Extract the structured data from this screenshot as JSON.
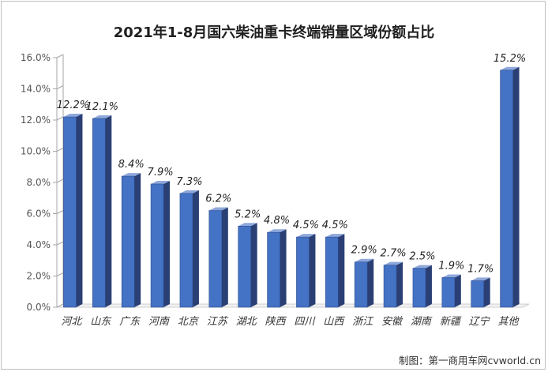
{
  "chart_data": {
    "type": "bar",
    "title": "2021年1-8月国六柴油重卡终端销量区域份额占比",
    "categories": [
      "河北",
      "山东",
      "广东",
      "河南",
      "北京",
      "江苏",
      "湖北",
      "陕西",
      "四川",
      "山西",
      "浙江",
      "安徽",
      "湖南",
      "新疆",
      "辽宁",
      "其他"
    ],
    "values": [
      12.2,
      12.1,
      8.4,
      7.9,
      7.3,
      6.2,
      5.2,
      4.8,
      4.5,
      4.5,
      2.9,
      2.7,
      2.5,
      1.9,
      1.7,
      15.2
    ],
    "data_labels": [
      "12.2%",
      "12.1%",
      "8.4%",
      "7.9%",
      "7.3%",
      "6.2%",
      "5.2%",
      "4.8%",
      "4.5%",
      "4.5%",
      "2.9%",
      "2.7%",
      "2.5%",
      "1.9%",
      "1.7%",
      "15.2%"
    ],
    "y_ticks": [
      "0.0%",
      "2.0%",
      "4.0%",
      "6.0%",
      "8.0%",
      "10.0%",
      "12.0%",
      "14.0%",
      "16.0%"
    ],
    "ylim": [
      0,
      16
    ],
    "grid": false,
    "legend": "none",
    "xlabel": "",
    "ylabel": "",
    "colors": {
      "bar_front": "#4472c4",
      "bar_side": "#2a3f74",
      "bar_top": "#8fa8dc",
      "axis": "#a6a6a6",
      "floor": "#cfcfcf"
    }
  },
  "credit": "制图：第一商用车网cvworld.cn"
}
